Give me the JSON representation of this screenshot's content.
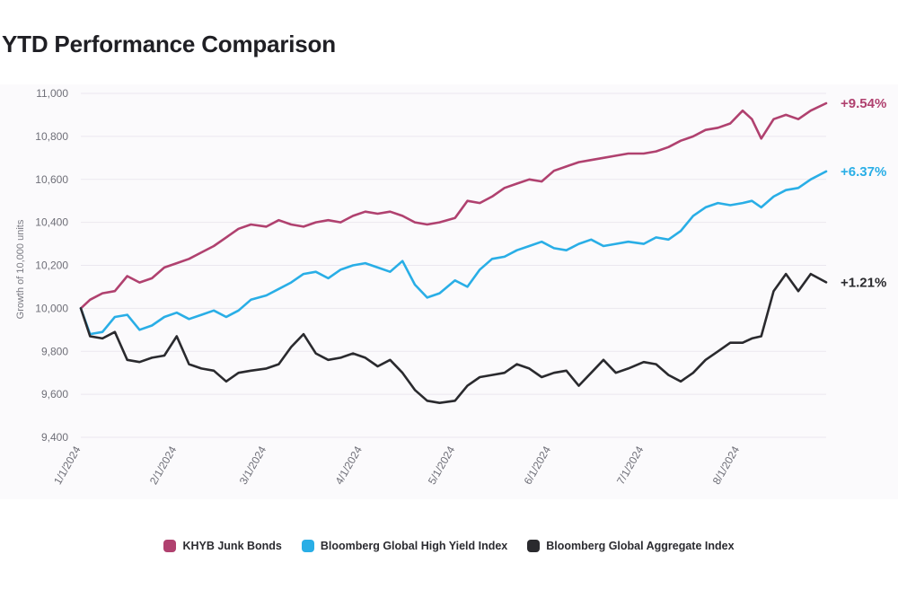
{
  "title": "YTD Performance Comparison",
  "colors": {
    "khyb": "#b0416f",
    "hy": "#29aee6",
    "agg": "#2a2a2e",
    "grid": "#ebe7ef"
  },
  "chart_data": {
    "type": "line",
    "title": "YTD Performance Comparison",
    "ylabel": "Growth of 10,000 units",
    "xlabel": "",
    "ylim": [
      9400,
      11000
    ],
    "yticks": [
      9400,
      9600,
      9800,
      10000,
      10200,
      10400,
      10600,
      10800,
      11000
    ],
    "ytick_labels": [
      "9,400",
      "9,600",
      "9,800",
      "10,000",
      "10,200",
      "10,400",
      "10,600",
      "10,800",
      "11,000"
    ],
    "xlim": [
      "2024-01-01",
      "2024-08-29"
    ],
    "xticks": [
      "2024-01-01",
      "2024-02-01",
      "2024-03-01",
      "2024-04-01",
      "2024-05-01",
      "2024-06-01",
      "2024-07-01",
      "2024-08-01"
    ],
    "xtick_labels": [
      "1/1/2024",
      "2/1/2024",
      "3/1/2024",
      "4/1/2024",
      "5/1/2024",
      "6/1/2024",
      "7/1/2024",
      "8/1/2024"
    ],
    "grid": "horizontal",
    "legend_position": "bottom",
    "series": [
      {
        "name": "KHYB Junk Bonds",
        "color": "#b0416f",
        "end_label": "+9.54%",
        "x": [
          "2024-01-01",
          "2024-01-04",
          "2024-01-08",
          "2024-01-12",
          "2024-01-16",
          "2024-01-20",
          "2024-01-24",
          "2024-01-28",
          "2024-02-01",
          "2024-02-05",
          "2024-02-09",
          "2024-02-13",
          "2024-02-17",
          "2024-02-21",
          "2024-02-25",
          "2024-03-01",
          "2024-03-05",
          "2024-03-09",
          "2024-03-13",
          "2024-03-17",
          "2024-03-21",
          "2024-03-25",
          "2024-03-29",
          "2024-04-02",
          "2024-04-06",
          "2024-04-10",
          "2024-04-14",
          "2024-04-18",
          "2024-04-22",
          "2024-04-26",
          "2024-05-01",
          "2024-05-05",
          "2024-05-09",
          "2024-05-13",
          "2024-05-17",
          "2024-05-21",
          "2024-05-25",
          "2024-05-29",
          "2024-06-02",
          "2024-06-06",
          "2024-06-10",
          "2024-06-14",
          "2024-06-18",
          "2024-06-22",
          "2024-06-26",
          "2024-07-01",
          "2024-07-05",
          "2024-07-09",
          "2024-07-13",
          "2024-07-17",
          "2024-07-21",
          "2024-07-25",
          "2024-07-29",
          "2024-08-02",
          "2024-08-05",
          "2024-08-08",
          "2024-08-12",
          "2024-08-16",
          "2024-08-20",
          "2024-08-24",
          "2024-08-29"
        ],
        "values": [
          10000,
          10040,
          10070,
          10080,
          10150,
          10120,
          10140,
          10190,
          10210,
          10230,
          10260,
          10290,
          10330,
          10370,
          10390,
          10380,
          10410,
          10390,
          10380,
          10400,
          10410,
          10400,
          10430,
          10450,
          10440,
          10450,
          10430,
          10400,
          10390,
          10400,
          10420,
          10500,
          10490,
          10520,
          10560,
          10580,
          10600,
          10590,
          10640,
          10660,
          10680,
          10690,
          10700,
          10710,
          10720,
          10720,
          10730,
          10750,
          10780,
          10800,
          10830,
          10840,
          10860,
          10920,
          10880,
          10790,
          10880,
          10900,
          10880,
          10920,
          10954
        ]
      },
      {
        "name": "Bloomberg Global High Yield Index",
        "color": "#29aee6",
        "end_label": "+6.37%",
        "x": [
          "2024-01-01",
          "2024-01-04",
          "2024-01-08",
          "2024-01-12",
          "2024-01-16",
          "2024-01-20",
          "2024-01-24",
          "2024-01-28",
          "2024-02-01",
          "2024-02-05",
          "2024-02-09",
          "2024-02-13",
          "2024-02-17",
          "2024-02-21",
          "2024-02-25",
          "2024-03-01",
          "2024-03-05",
          "2024-03-09",
          "2024-03-13",
          "2024-03-17",
          "2024-03-21",
          "2024-03-25",
          "2024-03-29",
          "2024-04-02",
          "2024-04-06",
          "2024-04-10",
          "2024-04-14",
          "2024-04-18",
          "2024-04-22",
          "2024-04-26",
          "2024-05-01",
          "2024-05-05",
          "2024-05-09",
          "2024-05-13",
          "2024-05-17",
          "2024-05-21",
          "2024-05-25",
          "2024-05-29",
          "2024-06-02",
          "2024-06-06",
          "2024-06-10",
          "2024-06-14",
          "2024-06-18",
          "2024-06-22",
          "2024-06-26",
          "2024-07-01",
          "2024-07-05",
          "2024-07-09",
          "2024-07-13",
          "2024-07-17",
          "2024-07-21",
          "2024-07-25",
          "2024-07-29",
          "2024-08-02",
          "2024-08-05",
          "2024-08-08",
          "2024-08-12",
          "2024-08-16",
          "2024-08-20",
          "2024-08-24",
          "2024-08-29"
        ],
        "values": [
          10000,
          9880,
          9890,
          9960,
          9970,
          9900,
          9920,
          9960,
          9980,
          9950,
          9970,
          9990,
          9960,
          9990,
          10040,
          10060,
          10090,
          10120,
          10160,
          10170,
          10140,
          10180,
          10200,
          10210,
          10190,
          10170,
          10220,
          10110,
          10050,
          10070,
          10130,
          10100,
          10180,
          10230,
          10240,
          10270,
          10290,
          10310,
          10280,
          10270,
          10300,
          10320,
          10290,
          10300,
          10310,
          10300,
          10330,
          10320,
          10360,
          10430,
          10470,
          10490,
          10480,
          10490,
          10500,
          10470,
          10520,
          10550,
          10560,
          10600,
          10637
        ]
      },
      {
        "name": "Bloomberg Global Aggregate Index",
        "color": "#2a2a2e",
        "end_label": "+1.21%",
        "x": [
          "2024-01-01",
          "2024-01-04",
          "2024-01-08",
          "2024-01-12",
          "2024-01-16",
          "2024-01-20",
          "2024-01-24",
          "2024-01-28",
          "2024-02-01",
          "2024-02-05",
          "2024-02-09",
          "2024-02-13",
          "2024-02-17",
          "2024-02-21",
          "2024-02-25",
          "2024-03-01",
          "2024-03-05",
          "2024-03-09",
          "2024-03-13",
          "2024-03-17",
          "2024-03-21",
          "2024-03-25",
          "2024-03-29",
          "2024-04-02",
          "2024-04-06",
          "2024-04-10",
          "2024-04-14",
          "2024-04-18",
          "2024-04-22",
          "2024-04-26",
          "2024-05-01",
          "2024-05-05",
          "2024-05-09",
          "2024-05-13",
          "2024-05-17",
          "2024-05-21",
          "2024-05-25",
          "2024-05-29",
          "2024-06-02",
          "2024-06-06",
          "2024-06-10",
          "2024-06-14",
          "2024-06-18",
          "2024-06-22",
          "2024-06-26",
          "2024-07-01",
          "2024-07-05",
          "2024-07-09",
          "2024-07-13",
          "2024-07-17",
          "2024-07-21",
          "2024-07-25",
          "2024-07-29",
          "2024-08-02",
          "2024-08-05",
          "2024-08-08",
          "2024-08-12",
          "2024-08-16",
          "2024-08-20",
          "2024-08-24",
          "2024-08-29"
        ],
        "values": [
          10000,
          9870,
          9860,
          9890,
          9760,
          9750,
          9770,
          9780,
          9870,
          9740,
          9720,
          9710,
          9660,
          9700,
          9710,
          9720,
          9740,
          9820,
          9880,
          9790,
          9760,
          9770,
          9790,
          9770,
          9730,
          9760,
          9700,
          9620,
          9570,
          9560,
          9570,
          9640,
          9680,
          9690,
          9700,
          9740,
          9720,
          9680,
          9700,
          9710,
          9640,
          9700,
          9760,
          9700,
          9720,
          9750,
          9740,
          9690,
          9660,
          9700,
          9760,
          9800,
          9840,
          9840,
          9860,
          9870,
          10080,
          10160,
          10080,
          10160,
          10121
        ]
      }
    ]
  }
}
